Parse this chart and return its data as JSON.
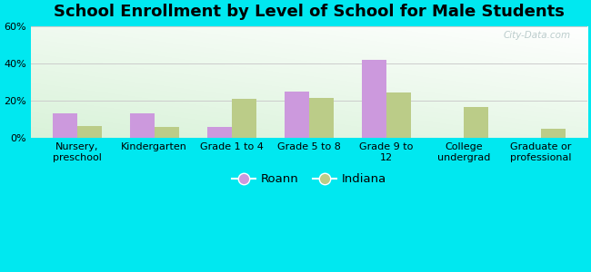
{
  "title": "School Enrollment by Level of School for Male Students",
  "categories": [
    "Nursery,\npreschool",
    "Kindergarten",
    "Grade 1 to 4",
    "Grade 5 to 8",
    "Grade 9 to\n12",
    "College\nundergrad",
    "Graduate or\nprofessional"
  ],
  "roann": [
    13.5,
    13.5,
    6.0,
    25.0,
    42.0,
    0.0,
    0.0
  ],
  "indiana": [
    6.5,
    6.0,
    21.0,
    21.5,
    24.5,
    16.5,
    5.0
  ],
  "roann_color": "#cc99dd",
  "indiana_color": "#bbcc88",
  "background_outer": "#00e8f0",
  "ylim": [
    0,
    60
  ],
  "yticks": [
    0,
    20,
    40,
    60
  ],
  "ytick_labels": [
    "0%",
    "20%",
    "40%",
    "60%"
  ],
  "grid_color": "#cccccc",
  "title_fontsize": 13,
  "tick_fontsize": 8,
  "legend_fontsize": 9.5,
  "bar_width": 0.32,
  "watermark": "City-Data.com"
}
